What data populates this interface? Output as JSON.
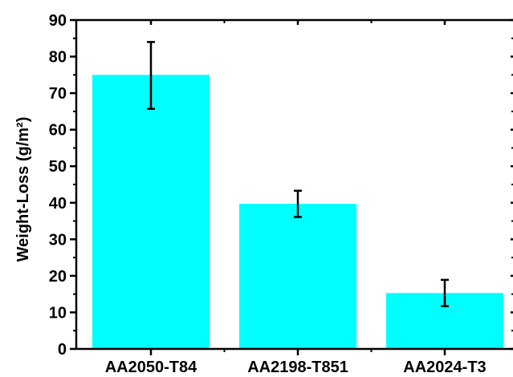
{
  "chart_data": {
    "type": "bar",
    "title": "",
    "xlabel": "",
    "ylabel": "Weight-Loss (g/m²)",
    "categories": [
      "AA2050-T84",
      "AA2198-T851",
      "AA2024-T3"
    ],
    "values": [
      75,
      39.7,
      15.3
    ],
    "errors": [
      [
        65.7,
        84.0
      ],
      [
        36.1,
        43.3
      ],
      [
        11.7,
        18.9
      ]
    ],
    "ylim": [
      0,
      90
    ],
    "yticks": [
      0,
      10,
      20,
      30,
      40,
      50,
      60,
      70,
      80,
      90
    ],
    "grid": false,
    "colors": {
      "bar": "#00FFFF",
      "axis": "#000000",
      "error": "#000000"
    }
  }
}
